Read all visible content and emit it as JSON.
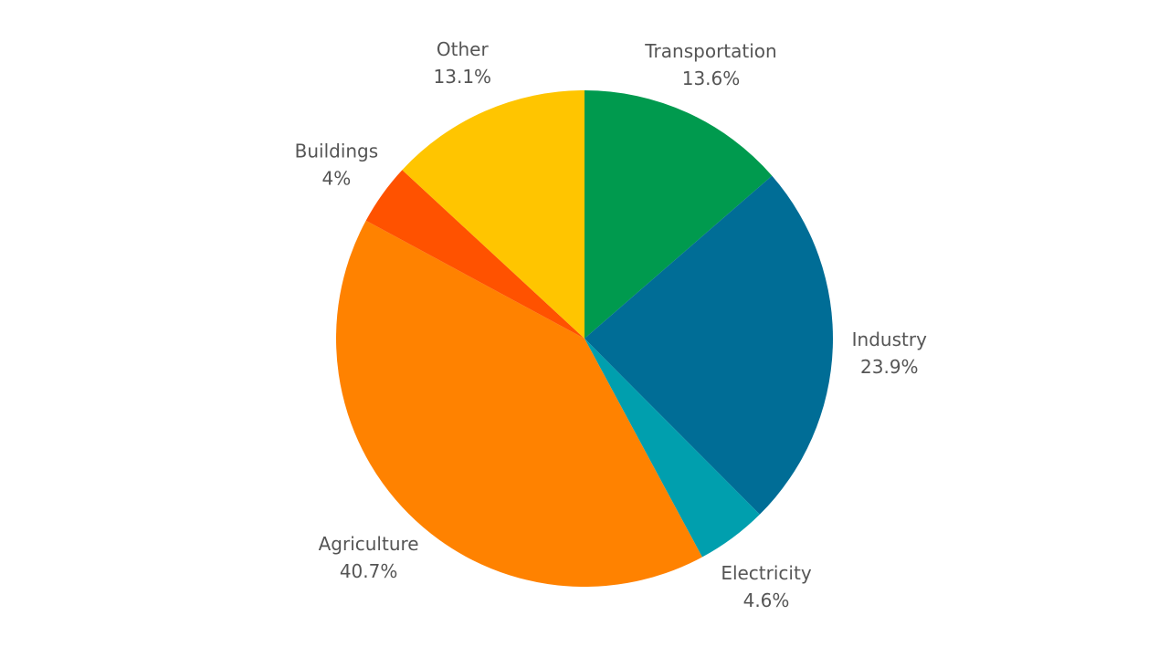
{
  "chart_data": {
    "type": "pie",
    "title": "",
    "slices": [
      {
        "label": "Transportation",
        "value": 13.6,
        "value_text": "13.6%",
        "color": "#009a4e"
      },
      {
        "label": "Industry",
        "value": 23.9,
        "value_text": "23.9%",
        "color": "#006d96"
      },
      {
        "label": "Electricity",
        "value": 4.6,
        "value_text": "4.6%",
        "color": "#009fae"
      },
      {
        "label": "Agriculture",
        "value": 40.7,
        "value_text": "40.7%",
        "color": "#ff8200"
      },
      {
        "label": "Buildings",
        "value": 4,
        "value_text": "4%",
        "color": "#ff5200"
      },
      {
        "label": "Other",
        "value": 13.1,
        "value_text": "13.1%",
        "color": "#ffc500"
      }
    ],
    "start": "top",
    "direction": "clockwise",
    "legend": "none",
    "label_color": "#555555"
  }
}
